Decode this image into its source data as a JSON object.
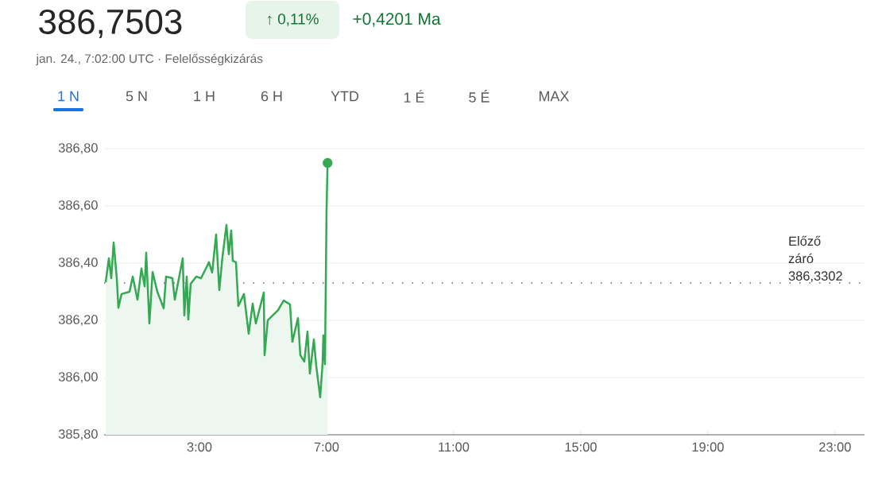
{
  "chart_data": {
    "type": "area",
    "title": "386,7503",
    "subtitle": "jan. 24., 7:02:00 UTC · Felelősségkizárás",
    "annotations": [
      "↑ 0,11%",
      "+0,4201 Ma",
      "1 N",
      "5 N",
      "1 H",
      "6 H",
      "YTD",
      "1 É",
      "5 É",
      "MAX"
    ],
    "series": [
      {
        "color": "#34a853",
        "x": [
          0.05,
          0.15,
          0.225,
          0.3,
          0.4,
          0.45,
          0.55,
          0.8,
          0.9,
          1.05,
          1.175,
          1.275,
          1.325,
          1.425,
          1.525,
          1.675,
          1.875,
          1.95,
          2.15,
          2.225,
          2.475,
          2.525,
          2.6,
          2.65,
          2.725,
          2.9,
          3.05,
          3.3,
          3.4,
          3.525,
          3.625,
          3.725,
          3.85,
          3.925,
          4.0,
          4.05,
          4.15,
          4.225,
          4.4,
          4.55,
          4.675,
          4.775,
          5.025,
          5.05,
          5.15,
          5.475,
          5.65,
          5.85,
          5.925,
          6.1,
          6.175,
          6.3,
          6.4,
          6.475,
          6.6,
          6.675,
          6.8,
          6.875,
          6.9,
          6.95,
          7.0,
          7.033
        ],
        "values": [
          386.333,
          386.417,
          386.347,
          386.472,
          386.347,
          386.244,
          386.292,
          386.3,
          386.353,
          386.272,
          386.381,
          386.319,
          386.436,
          386.189,
          386.369,
          386.3,
          386.242,
          386.353,
          386.347,
          386.272,
          386.417,
          386.217,
          386.353,
          386.203,
          386.328,
          386.353,
          386.347,
          386.403,
          386.367,
          386.5,
          386.306,
          386.422,
          386.533,
          386.431,
          386.514,
          386.408,
          386.403,
          386.25,
          386.292,
          386.153,
          386.258,
          386.189,
          386.297,
          386.078,
          386.2,
          386.236,
          386.269,
          386.256,
          386.125,
          386.208,
          386.078,
          386.056,
          386.161,
          386.014,
          386.133,
          386.042,
          385.931,
          386.05,
          386.147,
          386.047,
          386.583,
          386.75
        ]
      },
      {
        "type": "scatter",
        "color": "#34a853",
        "marker": "circle",
        "x": [
          7.033
        ],
        "values": [
          386.75
        ]
      }
    ],
    "xlim": [
      0,
      23.93
    ],
    "ylim": [
      385.8,
      386.8
    ],
    "xticks": [
      {
        "value": 3,
        "label": "3:00"
      },
      {
        "value": 7,
        "label": "7:00"
      },
      {
        "value": 11,
        "label": "11:00"
      },
      {
        "value": 15,
        "label": "15:00"
      },
      {
        "value": 19,
        "label": "19:00"
      },
      {
        "value": 23,
        "label": "23:00"
      }
    ],
    "yticks": [
      {
        "value": 385.8,
        "label": "385,80"
      },
      {
        "value": 386.0,
        "label": "386,00"
      },
      {
        "value": 386.2,
        "label": "386,20"
      },
      {
        "value": 386.4,
        "label": "386,40"
      },
      {
        "value": 386.6,
        "label": "386,60"
      },
      {
        "value": 386.8,
        "label": "386,80"
      }
    ],
    "ref_lines": [
      {
        "axis": "y",
        "value": 386.3302,
        "label": "Előző záró 386,3302",
        "line_style": "dotted",
        "color": "#5f6368"
      }
    ],
    "grid": "y",
    "marker": "none",
    "line_style": "solid"
  }
}
